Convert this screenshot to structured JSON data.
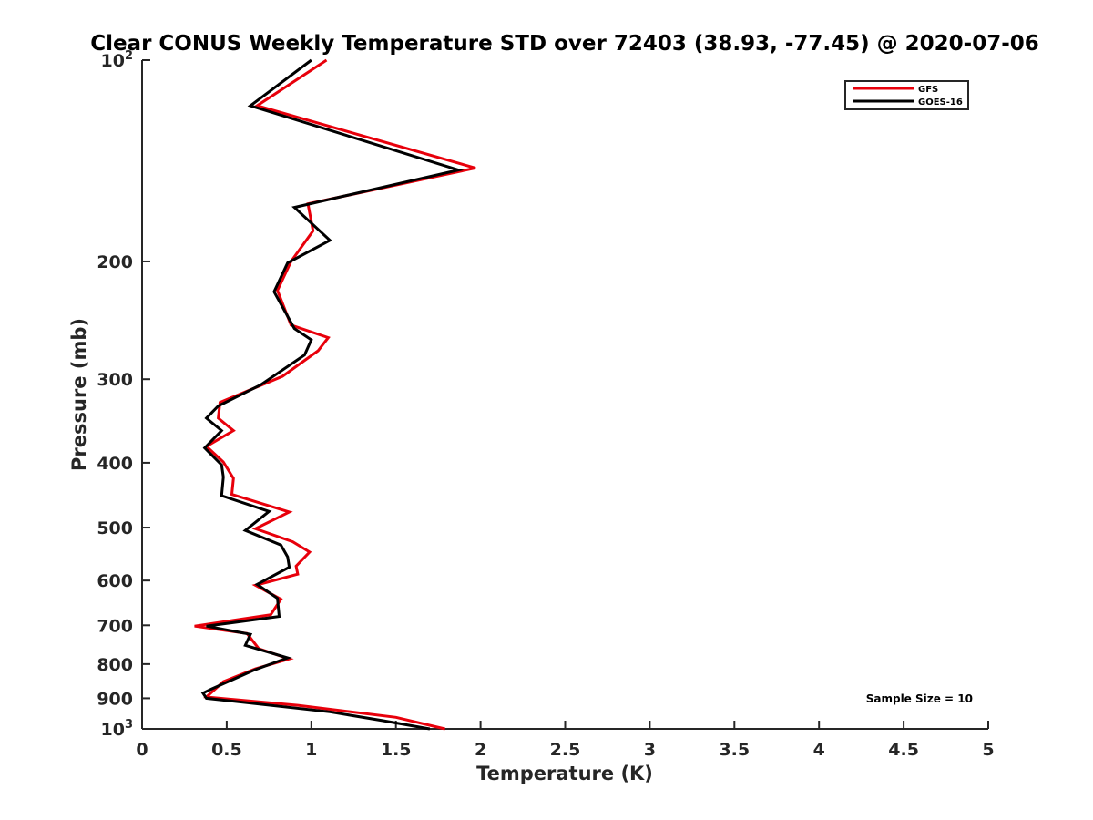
{
  "chart_data": {
    "type": "line",
    "title": "Clear CONUS Weekly Temperature STD over 72403 (38.93, -77.45) @ 2020-07-06",
    "xlabel": "Temperature (K)",
    "ylabel": "Pressure (mb)",
    "xlim": [
      0,
      5
    ],
    "ylim": [
      1000,
      100
    ],
    "yscale": "log",
    "y_reversed": true,
    "grid": false,
    "legend_position": "top-right",
    "x_ticks": [
      "0",
      "0.5",
      "1",
      "1.5",
      "2",
      "2.5",
      "3",
      "3.5",
      "4",
      "4.5",
      "5"
    ],
    "y_ticks": [
      {
        "value": 100,
        "base": "10",
        "exp": "2"
      },
      {
        "value": 200,
        "base": "200",
        "exp": ""
      },
      {
        "value": 300,
        "base": "300",
        "exp": ""
      },
      {
        "value": 400,
        "base": "400",
        "exp": ""
      },
      {
        "value": 500,
        "base": "500",
        "exp": ""
      },
      {
        "value": 600,
        "base": "600",
        "exp": ""
      },
      {
        "value": 700,
        "base": "700",
        "exp": ""
      },
      {
        "value": 800,
        "base": "800",
        "exp": ""
      },
      {
        "value": 900,
        "base": "900",
        "exp": ""
      },
      {
        "value": 1000,
        "base": "10",
        "exp": "3"
      }
    ],
    "annotation": "Sample Size = 10",
    "series": [
      {
        "name": "GFS",
        "color": "#e8000b",
        "points": [
          [
            1.09,
            100
          ],
          [
            0.68,
            117
          ],
          [
            1.97,
            145
          ],
          [
            0.98,
            164
          ],
          [
            1.01,
            180
          ],
          [
            0.88,
            200
          ],
          [
            0.8,
            221
          ],
          [
            0.88,
            249
          ],
          [
            1.1,
            260
          ],
          [
            1.04,
            272
          ],
          [
            0.83,
            297
          ],
          [
            0.46,
            325
          ],
          [
            0.45,
            343
          ],
          [
            0.54,
            358
          ],
          [
            0.38,
            378
          ],
          [
            0.48,
            399
          ],
          [
            0.54,
            422
          ],
          [
            0.53,
            446
          ],
          [
            0.87,
            474
          ],
          [
            0.67,
            502
          ],
          [
            0.89,
            525
          ],
          [
            0.99,
            544
          ],
          [
            0.91,
            571
          ],
          [
            0.92,
            587
          ],
          [
            0.67,
            610
          ],
          [
            0.82,
            640
          ],
          [
            0.76,
            675
          ],
          [
            0.31,
            702
          ],
          [
            0.62,
            720
          ],
          [
            0.69,
            759
          ],
          [
            0.87,
            786
          ],
          [
            0.67,
            813
          ],
          [
            0.48,
            850
          ],
          [
            0.38,
            896
          ],
          [
            0.92,
            922
          ],
          [
            1.5,
            961
          ],
          [
            1.79,
            1000
          ]
        ]
      },
      {
        "name": "GOES-16",
        "color": "#000000",
        "points": [
          [
            1.0,
            100
          ],
          [
            0.64,
            117
          ],
          [
            1.87,
            146
          ],
          [
            0.9,
            166
          ],
          [
            1.11,
            186
          ],
          [
            0.86,
            201
          ],
          [
            0.78,
            222
          ],
          [
            0.9,
            252
          ],
          [
            1.0,
            262
          ],
          [
            0.96,
            276
          ],
          [
            0.7,
            306
          ],
          [
            0.45,
            329
          ],
          [
            0.38,
            343
          ],
          [
            0.47,
            358
          ],
          [
            0.37,
            380
          ],
          [
            0.47,
            403
          ],
          [
            0.48,
            420
          ],
          [
            0.47,
            448
          ],
          [
            0.75,
            473
          ],
          [
            0.61,
            505
          ],
          [
            0.82,
            531
          ],
          [
            0.86,
            553
          ],
          [
            0.87,
            573
          ],
          [
            0.68,
            608
          ],
          [
            0.8,
            638
          ],
          [
            0.81,
            679
          ],
          [
            0.38,
            702
          ],
          [
            0.64,
            722
          ],
          [
            0.61,
            750
          ],
          [
            0.86,
            783
          ],
          [
            0.66,
            817
          ],
          [
            0.41,
            872
          ],
          [
            0.36,
            884
          ],
          [
            0.38,
            900
          ],
          [
            1.11,
            943
          ],
          [
            1.42,
            972
          ],
          [
            1.7,
            1000
          ]
        ]
      }
    ]
  }
}
